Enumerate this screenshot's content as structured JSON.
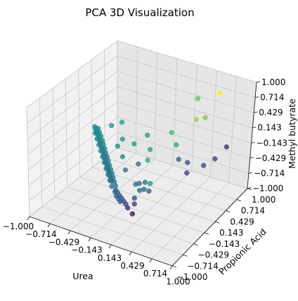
{
  "chart_data": {
    "type": "scatter",
    "title": "PCA 3D Visualization",
    "xlabel": "Urea",
    "ylabel": "Propionic Acid",
    "zlabel": "Methyl butyrate",
    "xlim": [
      -1.0,
      1.0
    ],
    "ylim": [
      -1.0,
      1.0
    ],
    "zlim": [
      -1.0,
      1.0
    ],
    "xticks": [
      "−1.000",
      "−0.714",
      "−0.429",
      "−0.143",
      "0.143",
      "0.429",
      "0.714",
      "1.000"
    ],
    "yticks": [
      "−1.000",
      "−0.714",
      "−0.429",
      "−0.143",
      "0.143",
      "0.429",
      "0.714",
      "1.000"
    ],
    "zticks": [
      "−1.000",
      "−0.714",
      "−0.429",
      "−0.143",
      "0.143",
      "0.429",
      "0.714",
      "1.000"
    ],
    "grid": true,
    "colormap": "viridis",
    "points": [
      {
        "x": -0.74,
        "y": 0.12,
        "z": 0.0,
        "c": 0.5
      },
      {
        "x": -0.72,
        "y": 0.1,
        "z": -0.01,
        "c": 0.48
      },
      {
        "x": -0.7,
        "y": 0.08,
        "z": -0.02,
        "c": 0.5
      },
      {
        "x": -0.68,
        "y": 0.06,
        "z": -0.03,
        "c": 0.47
      },
      {
        "x": -0.66,
        "y": 0.05,
        "z": -0.05,
        "c": 0.49
      },
      {
        "x": -0.64,
        "y": 0.03,
        "z": -0.06,
        "c": 0.46
      },
      {
        "x": -0.62,
        "y": 0.01,
        "z": -0.08,
        "c": 0.48
      },
      {
        "x": -0.6,
        "y": -0.01,
        "z": -0.09,
        "c": 0.45
      },
      {
        "x": -0.58,
        "y": -0.03,
        "z": -0.11,
        "c": 0.47
      },
      {
        "x": -0.56,
        "y": -0.05,
        "z": -0.12,
        "c": 0.44
      },
      {
        "x": -0.54,
        "y": -0.07,
        "z": -0.14,
        "c": 0.46
      },
      {
        "x": -0.52,
        "y": -0.09,
        "z": -0.15,
        "c": 0.43
      },
      {
        "x": -0.5,
        "y": -0.11,
        "z": -0.17,
        "c": 0.45
      },
      {
        "x": -0.48,
        "y": -0.13,
        "z": -0.18,
        "c": 0.42
      },
      {
        "x": -0.46,
        "y": -0.15,
        "z": -0.2,
        "c": 0.44
      },
      {
        "x": -0.44,
        "y": -0.17,
        "z": -0.21,
        "c": 0.41
      },
      {
        "x": -0.42,
        "y": -0.19,
        "z": -0.23,
        "c": 0.43
      },
      {
        "x": -0.4,
        "y": -0.21,
        "z": -0.24,
        "c": 0.4
      },
      {
        "x": -0.38,
        "y": -0.23,
        "z": -0.26,
        "c": 0.42
      },
      {
        "x": -0.36,
        "y": -0.25,
        "z": -0.27,
        "c": 0.39
      },
      {
        "x": -0.34,
        "y": -0.27,
        "z": -0.29,
        "c": 0.41
      },
      {
        "x": -0.32,
        "y": -0.29,
        "z": -0.3,
        "c": 0.38
      },
      {
        "x": -0.3,
        "y": -0.31,
        "z": -0.32,
        "c": 0.4
      },
      {
        "x": -0.28,
        "y": -0.33,
        "z": -0.33,
        "c": 0.37
      },
      {
        "x": -0.26,
        "y": -0.35,
        "z": -0.35,
        "c": 0.39
      },
      {
        "x": -0.24,
        "y": -0.37,
        "z": -0.36,
        "c": 0.36
      },
      {
        "x": -0.22,
        "y": -0.39,
        "z": -0.38,
        "c": 0.38
      },
      {
        "x": -0.2,
        "y": -0.41,
        "z": -0.39,
        "c": 0.35
      },
      {
        "x": -0.7,
        "y": 0.14,
        "z": -0.03,
        "c": 0.47
      },
      {
        "x": -0.66,
        "y": 0.1,
        "z": -0.06,
        "c": 0.45
      },
      {
        "x": -0.62,
        "y": 0.07,
        "z": -0.09,
        "c": 0.46
      },
      {
        "x": -0.58,
        "y": 0.03,
        "z": -0.12,
        "c": 0.44
      },
      {
        "x": -0.54,
        "y": -0.01,
        "z": -0.15,
        "c": 0.45
      },
      {
        "x": -0.5,
        "y": -0.05,
        "z": -0.18,
        "c": 0.43
      },
      {
        "x": -0.46,
        "y": -0.09,
        "z": -0.21,
        "c": 0.44
      },
      {
        "x": -0.42,
        "y": -0.13,
        "z": -0.24,
        "c": 0.42
      },
      {
        "x": -0.38,
        "y": -0.17,
        "z": -0.27,
        "c": 0.43
      },
      {
        "x": -0.34,
        "y": -0.21,
        "z": -0.3,
        "c": 0.41
      },
      {
        "x": -0.3,
        "y": -0.25,
        "z": -0.33,
        "c": 0.42
      },
      {
        "x": -0.26,
        "y": -0.29,
        "z": -0.36,
        "c": 0.4
      },
      {
        "x": -0.22,
        "y": -0.33,
        "z": -0.39,
        "c": 0.41
      },
      {
        "x": -0.18,
        "y": -0.37,
        "z": -0.42,
        "c": 0.39
      },
      {
        "x": -0.14,
        "y": -0.41,
        "z": -0.45,
        "c": 0.4
      },
      {
        "x": -0.68,
        "y": 0.02,
        "z": -0.02,
        "c": 0.49
      },
      {
        "x": -0.62,
        "y": -0.04,
        "z": -0.06,
        "c": 0.47
      },
      {
        "x": -0.56,
        "y": -0.1,
        "z": -0.1,
        "c": 0.46
      },
      {
        "x": -0.5,
        "y": -0.16,
        "z": -0.14,
        "c": 0.45
      },
      {
        "x": -0.44,
        "y": -0.22,
        "z": -0.18,
        "c": 0.44
      },
      {
        "x": -0.38,
        "y": -0.28,
        "z": -0.22,
        "c": 0.43
      },
      {
        "x": -0.32,
        "y": -0.34,
        "z": -0.26,
        "c": 0.42
      },
      {
        "x": -0.26,
        "y": -0.4,
        "z": -0.3,
        "c": 0.41
      },
      {
        "x": -0.2,
        "y": -0.46,
        "z": -0.34,
        "c": 0.4
      },
      {
        "x": -0.14,
        "y": -0.52,
        "z": -0.38,
        "c": 0.39
      },
      {
        "x": -0.1,
        "y": -0.48,
        "z": -0.46,
        "c": 0.32
      },
      {
        "x": -0.06,
        "y": -0.5,
        "z": -0.48,
        "c": 0.3
      },
      {
        "x": -0.02,
        "y": -0.52,
        "z": -0.5,
        "c": 0.28
      },
      {
        "x": 0.02,
        "y": -0.54,
        "z": -0.52,
        "c": 0.26
      },
      {
        "x": 0.06,
        "y": -0.56,
        "z": -0.54,
        "c": 0.24
      },
      {
        "x": -0.08,
        "y": -0.54,
        "z": -0.44,
        "c": 0.33
      },
      {
        "x": -0.04,
        "y": -0.58,
        "z": -0.47,
        "c": 0.31
      },
      {
        "x": 0.0,
        "y": -0.6,
        "z": -0.49,
        "c": 0.29
      },
      {
        "x": 0.04,
        "y": -0.62,
        "z": -0.51,
        "c": 0.27
      },
      {
        "x": 0.1,
        "y": -0.58,
        "z": -0.56,
        "c": 0.22
      },
      {
        "x": 0.14,
        "y": -0.6,
        "z": -0.6,
        "c": 0.12
      },
      {
        "x": 0.22,
        "y": -0.62,
        "z": -0.66,
        "c": 0.05
      },
      {
        "x": 0.08,
        "y": -0.3,
        "z": -0.4,
        "c": 0.36
      },
      {
        "x": 0.12,
        "y": -0.28,
        "z": -0.38,
        "c": 0.34
      },
      {
        "x": 0.16,
        "y": -0.34,
        "z": -0.45,
        "c": 0.35
      },
      {
        "x": 0.18,
        "y": -0.24,
        "z": -0.36,
        "c": 0.4
      },
      {
        "x": 0.2,
        "y": -0.3,
        "z": -0.44,
        "c": 0.33
      },
      {
        "x": 0.24,
        "y": -0.22,
        "z": -0.37,
        "c": 0.55
      },
      {
        "x": 0.26,
        "y": -0.28,
        "z": -0.46,
        "c": 0.3
      },
      {
        "x": 0.05,
        "y": 0.1,
        "z": -0.05,
        "c": 0.6
      },
      {
        "x": -0.05,
        "y": 0.2,
        "z": 0.1,
        "c": 0.58
      },
      {
        "x": -0.15,
        "y": 0.05,
        "z": 0.0,
        "c": 0.56
      },
      {
        "x": 0.1,
        "y": -0.05,
        "z": -0.12,
        "c": 0.62
      },
      {
        "x": -0.3,
        "y": 0.02,
        "z": 0.04,
        "c": 0.55
      },
      {
        "x": -0.45,
        "y": 0.28,
        "z": 0.1,
        "c": 0.57
      },
      {
        "x": 0.3,
        "y": 0.15,
        "z": 0.35,
        "c": 0.7
      },
      {
        "x": 0.55,
        "y": 0.3,
        "z": 0.6,
        "c": 0.85
      },
      {
        "x": 0.6,
        "y": 0.45,
        "z": 0.55,
        "c": 0.8
      },
      {
        "x": 0.4,
        "y": 0.1,
        "z": 0.2,
        "c": 0.62
      },
      {
        "x": 0.7,
        "y": 0.6,
        "z": 0.95,
        "c": 1.0
      },
      {
        "x": 0.5,
        "y": 0.4,
        "z": 0.9,
        "c": 0.75
      },
      {
        "x": 0.45,
        "y": 0.1,
        "z": -0.05,
        "c": 0.32
      },
      {
        "x": 0.6,
        "y": 0.05,
        "z": -0.2,
        "c": 0.2
      },
      {
        "x": 0.75,
        "y": 0.2,
        "z": -0.1,
        "c": 0.22
      },
      {
        "x": 0.85,
        "y": 0.3,
        "z": 0.0,
        "c": 0.18
      },
      {
        "x": 0.55,
        "y": 0.15,
        "z": -0.1,
        "c": 0.25
      },
      {
        "x": 0.9,
        "y": 0.5,
        "z": 0.1,
        "c": 0.14
      },
      {
        "x": 0.0,
        "y": -0.1,
        "z": -0.2,
        "c": 0.38
      },
      {
        "x": -0.2,
        "y": -0.15,
        "z": -0.12,
        "c": 0.48
      },
      {
        "x": -0.1,
        "y": -0.25,
        "z": -0.25,
        "c": 0.4
      },
      {
        "x": 0.15,
        "y": -0.45,
        "z": -0.52,
        "c": 0.24
      },
      {
        "x": 0.18,
        "y": -0.5,
        "z": -0.58,
        "c": 0.18
      },
      {
        "x": -0.55,
        "y": 0.2,
        "z": 0.05,
        "c": 0.52
      },
      {
        "x": -0.35,
        "y": 0.0,
        "z": -0.1,
        "c": 0.5
      }
    ]
  }
}
